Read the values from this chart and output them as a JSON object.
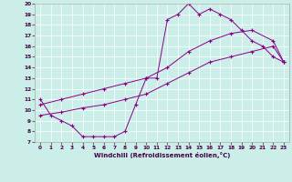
{
  "xlabel": "Windchill (Refroidissement éolien,°C)",
  "bg_color": "#cceee8",
  "line_color": "#880088",
  "xlim": [
    -0.5,
    23.5
  ],
  "ylim": [
    7,
    20
  ],
  "xticks": [
    0,
    1,
    2,
    3,
    4,
    5,
    6,
    7,
    8,
    9,
    10,
    11,
    12,
    13,
    14,
    15,
    16,
    17,
    18,
    19,
    20,
    21,
    22,
    23
  ],
  "yticks": [
    7,
    8,
    9,
    10,
    11,
    12,
    13,
    14,
    15,
    16,
    17,
    18,
    19,
    20
  ],
  "line1_x": [
    0,
    1,
    2,
    3,
    4,
    5,
    6,
    7,
    8,
    9,
    10,
    11,
    12,
    13,
    14,
    15,
    16,
    17,
    18,
    19,
    20,
    21,
    22,
    23
  ],
  "line1_y": [
    11,
    9.5,
    9.0,
    8.5,
    7.5,
    7.5,
    7.5,
    7.5,
    8.0,
    10.5,
    13.0,
    13.0,
    18.5,
    19.0,
    20.0,
    19.0,
    19.5,
    19.0,
    18.5,
    17.5,
    16.5,
    16.0,
    15.0,
    14.5
  ],
  "line2_x": [
    0,
    2,
    4,
    6,
    8,
    10,
    12,
    14,
    16,
    18,
    20,
    22,
    23
  ],
  "line2_y": [
    9.5,
    9.8,
    10.2,
    10.5,
    11.0,
    11.5,
    12.5,
    13.5,
    14.5,
    15.0,
    15.5,
    16.0,
    14.5
  ],
  "line3_x": [
    0,
    2,
    4,
    6,
    8,
    10,
    12,
    14,
    16,
    18,
    20,
    22,
    23
  ],
  "line3_y": [
    10.5,
    11.0,
    11.5,
    12.0,
    12.5,
    13.0,
    14.0,
    15.5,
    16.5,
    17.2,
    17.5,
    16.5,
    14.5
  ]
}
